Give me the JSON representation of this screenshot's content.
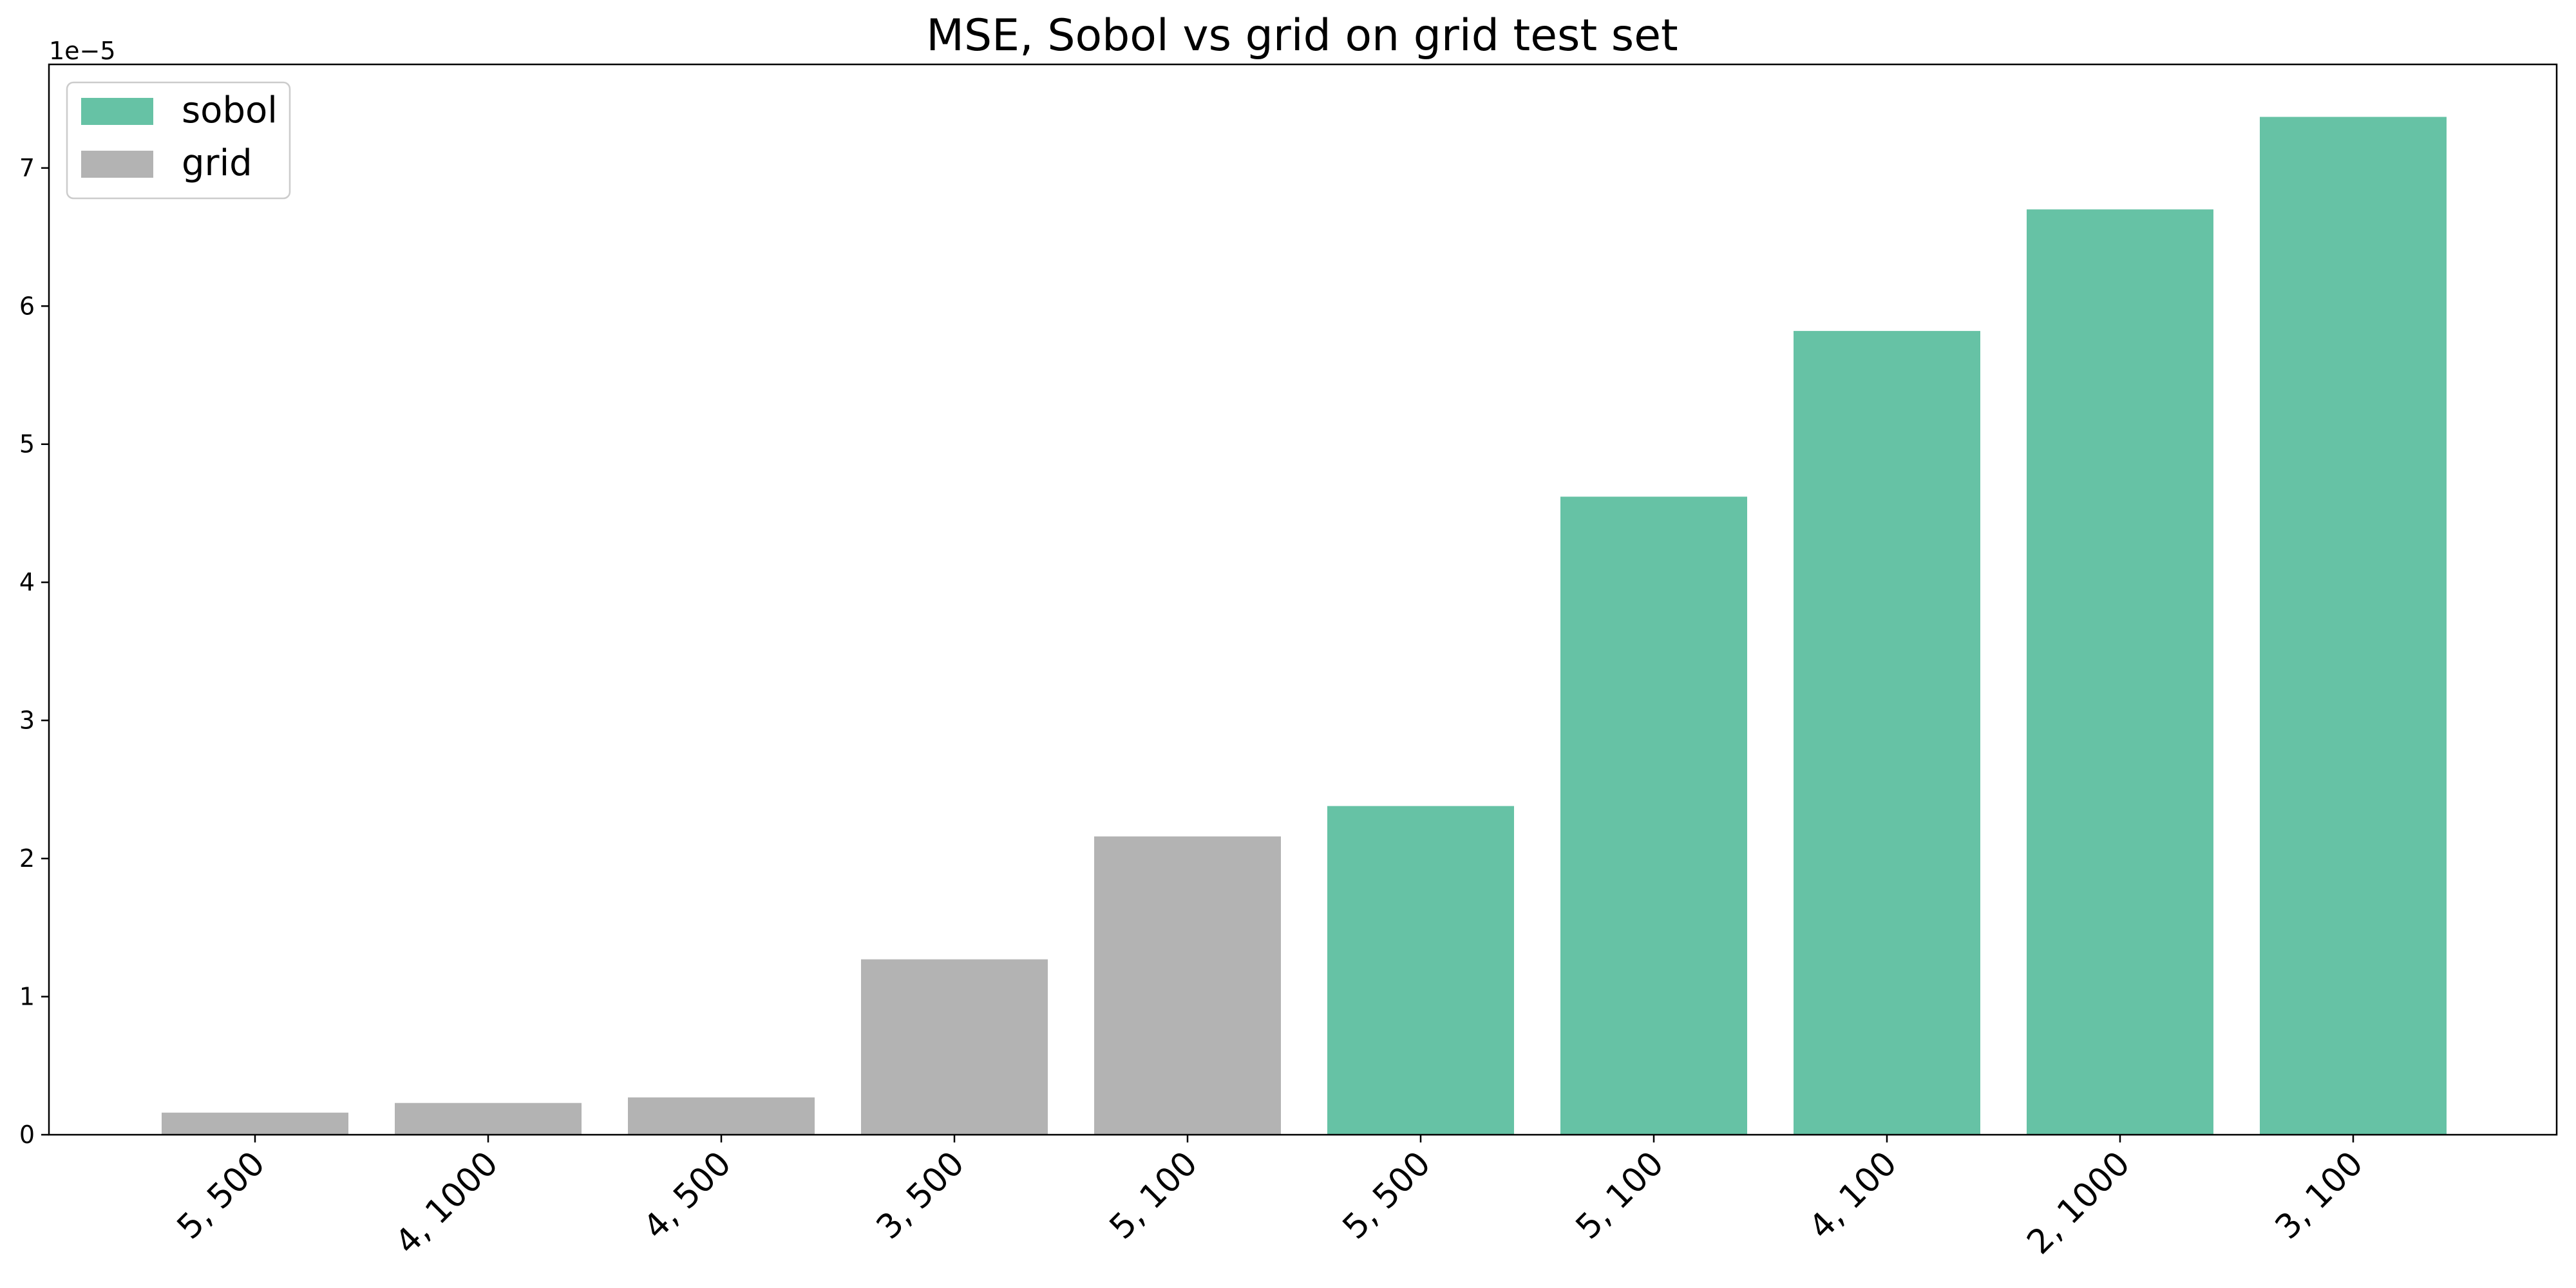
{
  "chart_data": {
    "type": "bar",
    "title": "MSE, Sobol vs grid on grid test set",
    "xlabel": "",
    "ylabel": "",
    "y_offset_label": "1e−5",
    "y_scale_factor": 1e-05,
    "ylim": [
      0,
      7.75e-05
    ],
    "yticks": [
      0,
      1,
      2,
      3,
      4,
      5,
      6,
      7
    ],
    "grid": false,
    "legend": {
      "placement": "top-left",
      "entries": [
        {
          "name": "sobol",
          "color": "#66c2a5"
        },
        {
          "name": "grid",
          "color": "#b3b3b3"
        }
      ]
    },
    "categories": [
      "5, 500",
      "4, 1000",
      "4, 500",
      "3, 500",
      "5, 100",
      "5, 500",
      "5, 100",
      "4, 100",
      "2, 1000",
      "3, 100"
    ],
    "values": [
      1.6e-06,
      2.3e-06,
      2.7e-06,
      1.27e-05,
      2.16e-05,
      2.38e-05,
      4.62e-05,
      5.82e-05,
      6.7e-05,
      7.37e-05
    ],
    "bar_groups": [
      "grid",
      "grid",
      "grid",
      "grid",
      "grid",
      "sobol",
      "sobol",
      "sobol",
      "sobol",
      "sobol"
    ],
    "colors": {
      "sobol": "#66c2a5",
      "grid": "#b3b3b3",
      "axis": "#000000",
      "background": "#ffffff"
    }
  }
}
